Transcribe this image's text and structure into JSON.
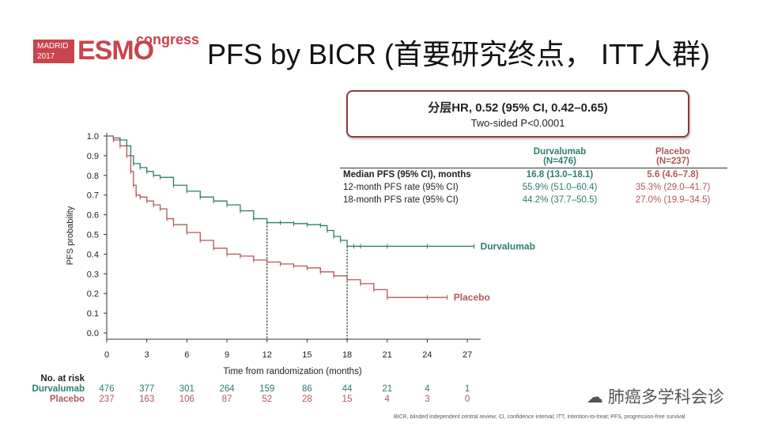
{
  "logo": {
    "city": "MADRID",
    "year": "2017",
    "brand": "ESMO",
    "suffix": "congress"
  },
  "slide_title": "PFS by BICR (首要研究终点， ITT人群)",
  "hr_box": {
    "line1": "分层HR, 0.52 (95% CI, 0.42–0.65)",
    "line2": "Two-sided P<0.0001"
  },
  "stats_table": {
    "durva_header": "Durvalumab",
    "durva_n": "(N=476)",
    "placebo_header": "Placebo",
    "placebo_n": "(N=237)",
    "rows": [
      {
        "label": "Median PFS (95% CI), months",
        "durva": "16.8 (13.0–18.1)",
        "placebo": "5.6 (4.6–7.8)"
      },
      {
        "label": "12-month PFS rate (95% CI)",
        "durva": "55.9% (51.0–60.4)",
        "placebo": "35.3% (29.0–41.7)"
      },
      {
        "label": "18-month PFS rate (95% CI)",
        "durva": "44.2% (37.7–50.5)",
        "placebo": "27.0% (19.9–34.5)"
      }
    ]
  },
  "risk_table": {
    "title": "No. at risk",
    "durva_label": "Durvalumab",
    "placebo_label": "Placebo",
    "durva": [
      "476",
      "377",
      "301",
      "264",
      "159",
      "86",
      "44",
      "21",
      "4",
      "1"
    ],
    "placebo": [
      "237",
      "163",
      "106",
      "87",
      "52",
      "28",
      "15",
      "4",
      "3",
      "0"
    ]
  },
  "watermark": "肺癌多学科会诊",
  "footnote": "BICR, blinded independent central review; CI, confidence interval; ITT, intention-to-treat; PFS, progression-free survival",
  "colors": {
    "durvalumab": "#2e7d6e",
    "placebo": "#b0575a",
    "accent": "#c8454d"
  },
  "chart_data": {
    "type": "line",
    "title": "",
    "xlabel": "Time from randomization (months)",
    "ylabel": "PFS probability",
    "xlim": [
      0,
      28
    ],
    "ylim": [
      0,
      1.0
    ],
    "xticks": [
      0,
      3,
      6,
      9,
      12,
      15,
      18,
      21,
      24,
      27
    ],
    "yticks": [
      0.0,
      0.1,
      0.2,
      0.3,
      0.4,
      0.5,
      0.6,
      0.7,
      0.8,
      0.9,
      1.0
    ],
    "reference_lines_x": [
      12,
      18
    ],
    "series": [
      {
        "name": "Durvalumab",
        "color": "#2e7d6e",
        "x": [
          0,
          0.5,
          1.0,
          1.5,
          1.8,
          2.0,
          2.5,
          3.0,
          3.5,
          4.0,
          5.0,
          6.0,
          7.0,
          8.0,
          9.0,
          10.0,
          11.0,
          12.0,
          13.0,
          14.0,
          15.0,
          16.0,
          16.5,
          17.0,
          17.5,
          18.0,
          18.5,
          19.0,
          21.0,
          24.0,
          27.5
        ],
        "y": [
          1.0,
          0.99,
          0.98,
          0.95,
          0.9,
          0.86,
          0.84,
          0.82,
          0.8,
          0.79,
          0.75,
          0.72,
          0.69,
          0.67,
          0.65,
          0.62,
          0.58,
          0.56,
          0.56,
          0.555,
          0.55,
          0.545,
          0.52,
          0.49,
          0.47,
          0.44,
          0.44,
          0.44,
          0.44,
          0.44,
          0.44
        ]
      },
      {
        "name": "Placebo",
        "color": "#b0575a",
        "x": [
          0,
          0.5,
          1.0,
          1.5,
          1.8,
          2.0,
          2.2,
          2.5,
          3.0,
          3.5,
          4.0,
          4.5,
          5.0,
          6.0,
          7.0,
          8.0,
          9.0,
          10.0,
          11.0,
          12.0,
          13.0,
          14.0,
          15.0,
          16.0,
          17.0,
          18.0,
          19.0,
          20.0,
          21.0,
          24.0,
          25.5
        ],
        "y": [
          1.0,
          0.98,
          0.95,
          0.9,
          0.82,
          0.75,
          0.7,
          0.69,
          0.67,
          0.65,
          0.63,
          0.58,
          0.55,
          0.51,
          0.47,
          0.43,
          0.4,
          0.39,
          0.37,
          0.36,
          0.35,
          0.34,
          0.33,
          0.31,
          0.29,
          0.27,
          0.25,
          0.22,
          0.18,
          0.18,
          0.18
        ]
      }
    ]
  }
}
